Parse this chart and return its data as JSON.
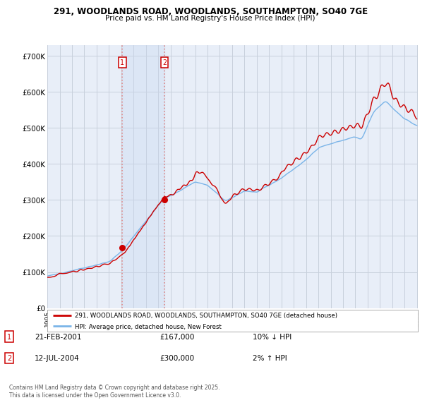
{
  "title1": "291, WOODLANDS ROAD, WOODLANDS, SOUTHAMPTON, SO40 7GE",
  "title2": "Price paid vs. HM Land Registry's House Price Index (HPI)",
  "ylabel_ticks": [
    "£0",
    "£100K",
    "£200K",
    "£300K",
    "£400K",
    "£500K",
    "£600K",
    "£700K"
  ],
  "ytick_values": [
    0,
    100000,
    200000,
    300000,
    400000,
    500000,
    600000,
    700000
  ],
  "ylim": [
    0,
    730000
  ],
  "background_color": "#ffffff",
  "plot_bg_color": "#e8eef8",
  "grid_color": "#c8d0dc",
  "hpi_color": "#7ab4e8",
  "price_color": "#cc0000",
  "vline_color": "#dd8888",
  "span_color": "#c8d8f0",
  "sale1_x": 2001.083,
  "sale1_price": 167000,
  "sale2_x": 2004.5,
  "sale2_price": 300000,
  "legend_property": "291, WOODLANDS ROAD, WOODLANDS, SOUTHAMPTON, SO40 7GE (detached house)",
  "legend_hpi": "HPI: Average price, detached house, New Forest",
  "footer": "Contains HM Land Registry data © Crown copyright and database right 2025.\nThis data is licensed under the Open Government Licence v3.0.",
  "table_row1": [
    "1",
    "21-FEB-2001",
    "£167,000",
    "10% ↓ HPI"
  ],
  "table_row2": [
    "2",
    "12-JUL-2004",
    "£300,000",
    "2% ↑ HPI"
  ]
}
